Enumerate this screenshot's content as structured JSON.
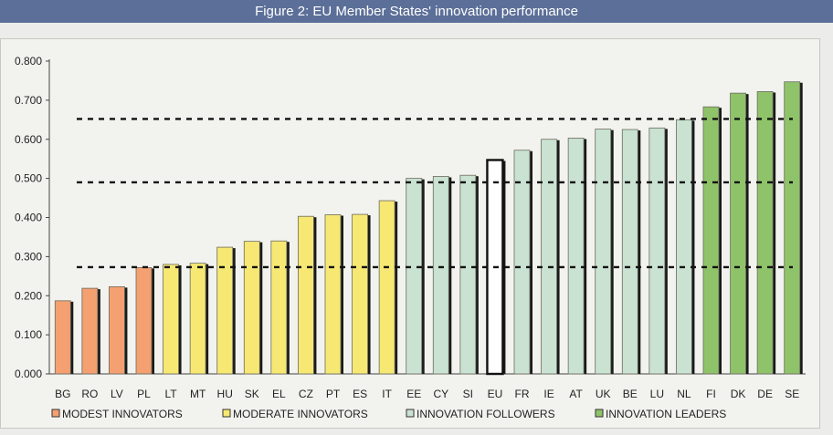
{
  "title": "Figure 2: EU Member States' innovation performance",
  "chart_data": {
    "type": "bar",
    "categories": [
      "BG",
      "RO",
      "LV",
      "PL",
      "LT",
      "MT",
      "HU",
      "SK",
      "EL",
      "CZ",
      "PT",
      "ES",
      "IT",
      "EE",
      "CY",
      "SI",
      "EU",
      "FR",
      "IE",
      "AT",
      "UK",
      "BE",
      "LU",
      "NL",
      "FI",
      "DK",
      "DE",
      "SE"
    ],
    "values": [
      0.187,
      0.219,
      0.223,
      0.272,
      0.28,
      0.283,
      0.324,
      0.339,
      0.34,
      0.403,
      0.407,
      0.408,
      0.443,
      0.5,
      0.505,
      0.508,
      0.547,
      0.572,
      0.6,
      0.603,
      0.626,
      0.625,
      0.629,
      0.65,
      0.683,
      0.718,
      0.722,
      0.747
    ],
    "groups": [
      "modest",
      "modest",
      "modest",
      "modest",
      "moderate",
      "moderate",
      "moderate",
      "moderate",
      "moderate",
      "moderate",
      "moderate",
      "moderate",
      "moderate",
      "followers",
      "followers",
      "followers",
      "eu",
      "followers",
      "followers",
      "followers",
      "followers",
      "followers",
      "followers",
      "followers",
      "leaders",
      "leaders",
      "leaders",
      "leaders"
    ],
    "group_colors": {
      "modest": "#f4a070",
      "moderate": "#f7e873",
      "followers": "#c9e2d2",
      "eu": "#ffffff",
      "leaders": "#8fc36a"
    },
    "thresholds": [
      0.273,
      0.49,
      0.652
    ],
    "ylim": [
      0,
      0.8
    ],
    "yticks": [
      "0.000",
      "0.100",
      "0.200",
      "0.300",
      "0.400",
      "0.500",
      "0.600",
      "0.700",
      "0.800"
    ],
    "grid": false,
    "legend": {
      "placement": "bottom",
      "items": [
        {
          "key": "modest",
          "label": "MODEST INNOVATORS"
        },
        {
          "key": "moderate",
          "label": "MODERATE INNOVATORS"
        },
        {
          "key": "followers",
          "label": "INNOVATION FOLLOWERS"
        },
        {
          "key": "leaders",
          "label": "INNOVATION LEADERS"
        }
      ]
    }
  }
}
